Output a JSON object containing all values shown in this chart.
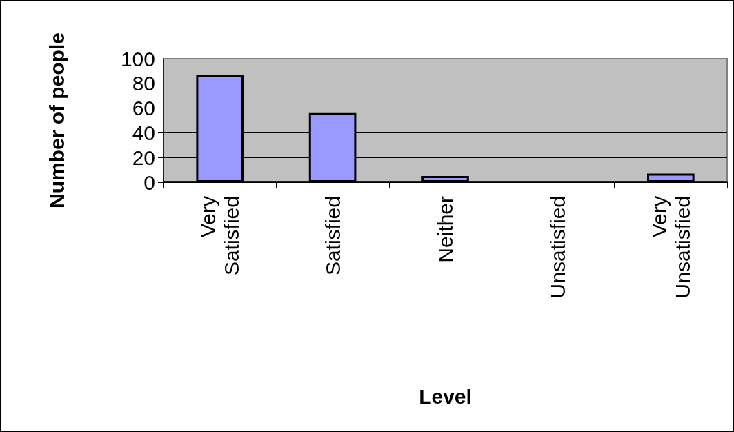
{
  "chart_data": {
    "type": "bar",
    "xlabel": "Level",
    "ylabel": "Number of people",
    "categories": [
      "Very Satisfied",
      "Satisfied",
      "Neither",
      "Unsatisfied",
      "Very Unsatisfied"
    ],
    "values": [
      87,
      56,
      5,
      0,
      7
    ],
    "color": "#9999ff",
    "ylim": [
      0,
      100
    ],
    "yticks": [
      0,
      20,
      40,
      60,
      80,
      100
    ],
    "grid": "y"
  }
}
